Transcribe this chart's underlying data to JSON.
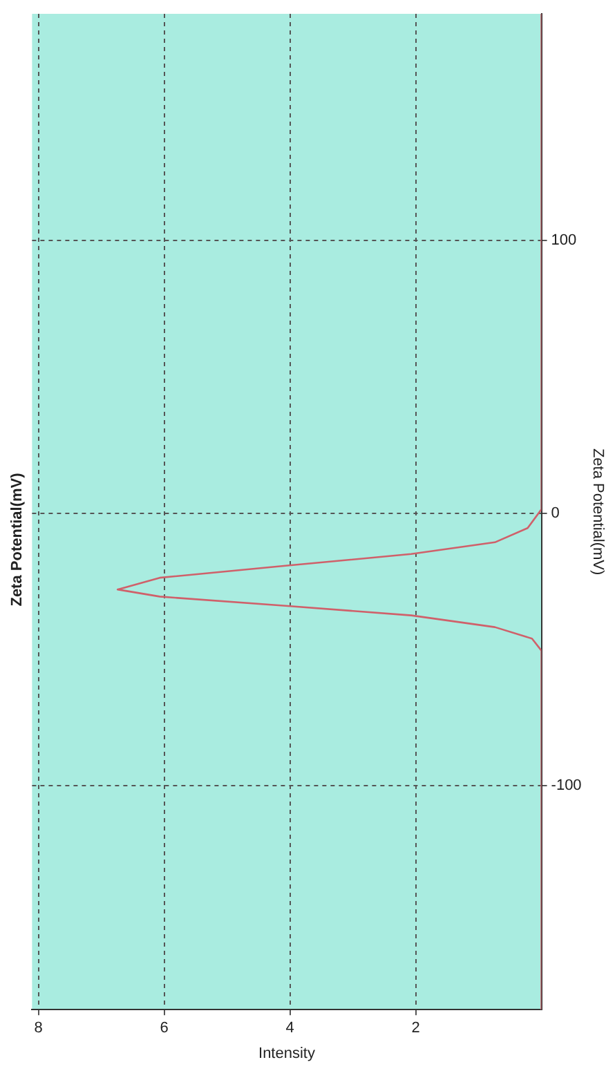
{
  "chart_data": {
    "type": "line",
    "title": "Zeta Potential(mV)",
    "xlabel": "Intensity",
    "ylabel": "Zeta Potential(mV)",
    "series": [
      {
        "color": "#d0606a",
        "x": [
          0,
          0,
          0.15,
          0.74,
          2.07,
          4.07,
          6.07,
          6.74,
          6.07,
          4.07,
          2.07,
          0.74,
          0.22,
          0,
          0
        ],
        "values": [
          -182,
          -50.4,
          -46,
          -41.8,
          -37.5,
          -34,
          -30.6,
          -28,
          -23.7,
          -19.3,
          -15,
          -10.7,
          -5.5,
          1.4,
          183
        ]
      }
    ],
    "xlim": [
      8.1,
      0
    ],
    "xticks": [
      8,
      6,
      4,
      2
    ],
    "ylim": [
      -182,
      183
    ],
    "yticks": [
      -100,
      0,
      100
    ],
    "grid": true,
    "marker": "none",
    "line_style": "solid",
    "legend": false
  }
}
